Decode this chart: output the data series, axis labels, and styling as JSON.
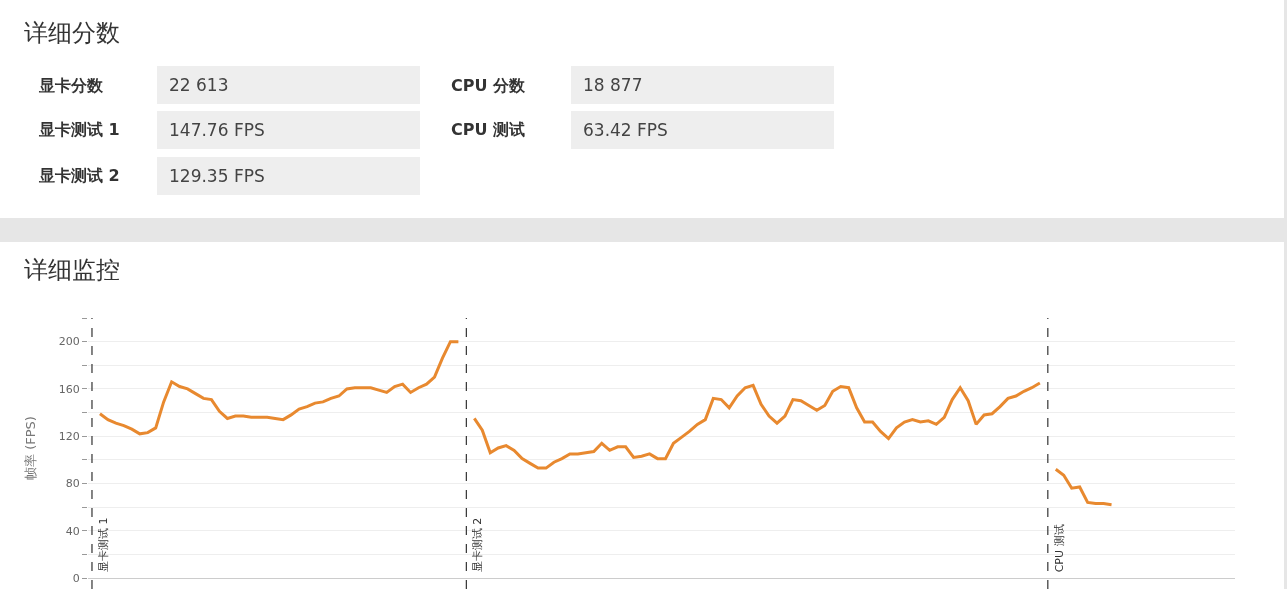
{
  "chart_data": [
    {
      "type": "other",
      "title": "详细分数",
      "annotations": [
        "显卡分数",
        "22 613",
        "CPU 分数",
        "18 877",
        "显卡测试 1",
        "147.76 FPS",
        "CPU 测试",
        "63.42 FPS",
        "显卡测试 2",
        "129.35 FPS"
      ]
    },
    {
      "type": "line",
      "title": "详细监控",
      "ylabel": "帧率 (FPS)",
      "color": "#e8892f",
      "categories": [
        null,
        null,
        null,
        null,
        null,
        null,
        null,
        null,
        null,
        null,
        null,
        null,
        null,
        null,
        null,
        null,
        null,
        null,
        null,
        null,
        null,
        null,
        null,
        null,
        null,
        null,
        null,
        null,
        null,
        null,
        null,
        null,
        null,
        null,
        null,
        null,
        null,
        null,
        null,
        null,
        null,
        null,
        null,
        null,
        null,
        null,
        null,
        null,
        null,
        null,
        null,
        null,
        null,
        null,
        null,
        null,
        null,
        null,
        null,
        null,
        null,
        null,
        null,
        null,
        null,
        null,
        null,
        null,
        null,
        null,
        null,
        null,
        null,
        null,
        null,
        null,
        null,
        null,
        null,
        null,
        null,
        null,
        null,
        null,
        null,
        null,
        null,
        null,
        null,
        null,
        null,
        null,
        null,
        null,
        null,
        null,
        null,
        null,
        null,
        null,
        null,
        null,
        null,
        null,
        null,
        null,
        null,
        null,
        null,
        null,
        null,
        null,
        null,
        null,
        null,
        null,
        null,
        null,
        null,
        null,
        null,
        null,
        null,
        null,
        null,
        null,
        null,
        null,
        null,
        null,
        null,
        null,
        null,
        null,
        null,
        null,
        null,
        null,
        null,
        null,
        null,
        null,
        null,
        null
      ],
      "values": [
        null,
        139,
        134,
        131,
        129,
        126,
        122,
        123,
        127,
        149,
        166,
        162,
        160,
        156,
        152,
        151,
        141,
        135,
        137,
        137,
        136,
        136,
        136,
        135,
        134,
        138,
        143,
        145,
        148,
        149,
        152,
        154,
        160,
        161,
        161,
        161,
        159,
        157,
        162,
        164,
        157,
        161,
        164,
        170,
        186,
        200,
        200,
        null,
        135,
        125,
        106,
        110,
        112,
        108,
        101,
        97,
        93,
        93,
        98,
        101,
        105,
        105,
        106,
        107,
        114,
        108,
        111,
        111,
        102,
        103,
        105,
        101,
        101,
        114,
        119,
        124,
        130,
        134,
        152,
        151,
        144,
        154,
        161,
        163,
        147,
        137,
        131,
        137,
        151,
        150,
        146,
        142,
        146,
        158,
        162,
        161,
        144,
        132,
        132,
        124,
        118,
        127,
        132,
        134,
        132,
        133,
        130,
        136,
        151,
        161,
        150,
        130,
        138,
        139,
        145,
        152,
        154,
        158,
        161,
        165,
        null,
        92,
        87,
        76,
        77,
        64,
        63,
        63,
        62,
        null,
        null,
        null,
        null,
        null,
        null,
        null,
        null,
        null,
        null,
        null,
        null,
        null,
        null,
        null
      ],
      "ylim": [
        0,
        220
      ],
      "yticks": [
        0,
        {
          "value": 20,
          "label": null
        },
        40,
        {
          "value": 60,
          "label": null
        },
        80,
        {
          "value": 100,
          "label": null
        },
        120,
        {
          "value": 140,
          "label": null
        },
        160,
        {
          "value": 180,
          "label": null
        },
        200,
        {
          "value": 220,
          "label": null
        }
      ],
      "grid": "y",
      "tick_labels": "y",
      "annotations": [
        "显卡测试 1",
        "显卡测试 2",
        "CPU 测试"
      ]
    }
  ]
}
